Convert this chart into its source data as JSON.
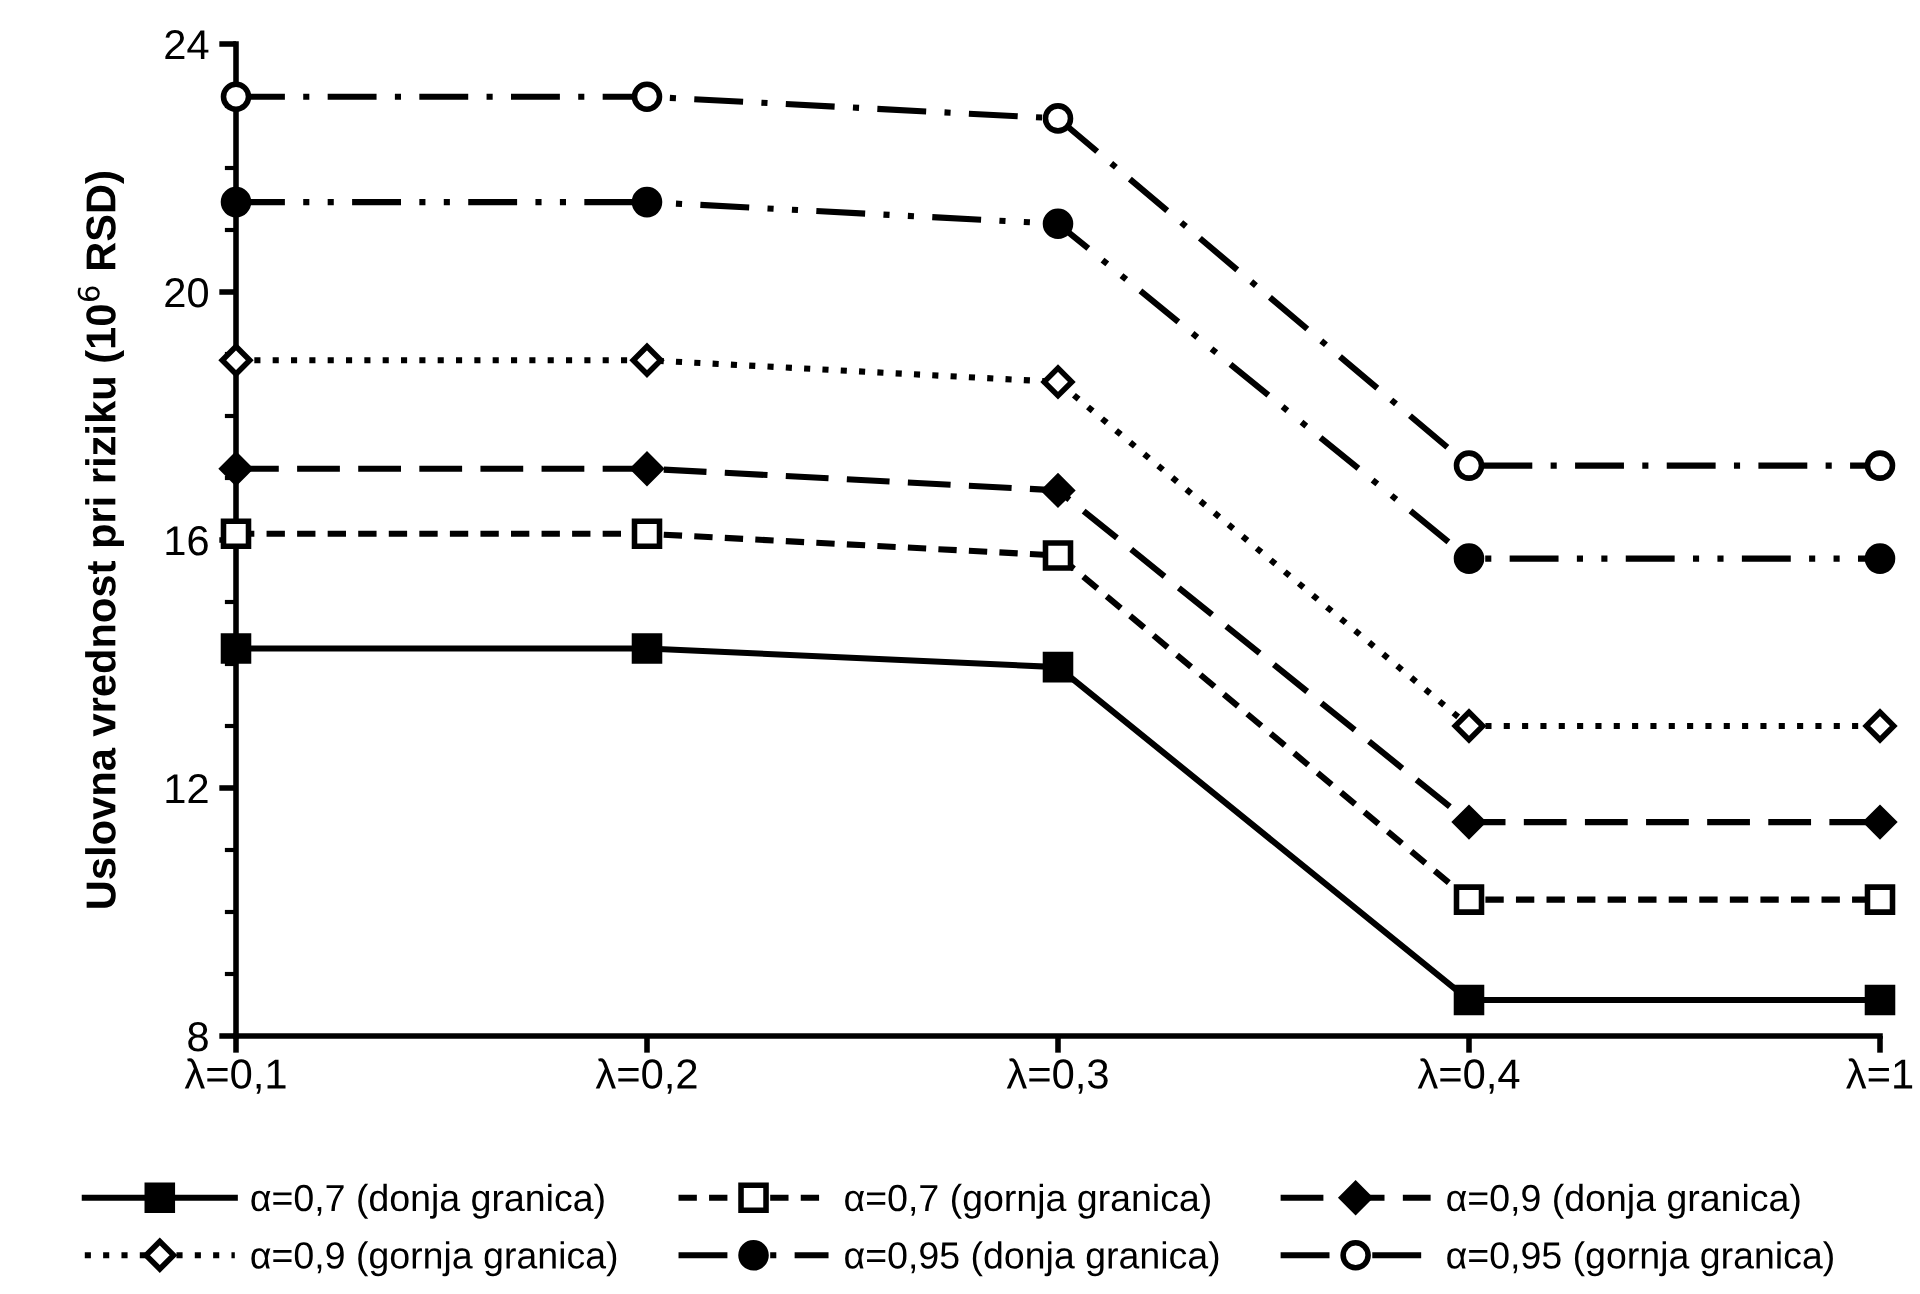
{
  "chart_data": {
    "type": "line",
    "ylabel": "Uslovna vrednost pri riziku (10$^{6}$ RSD)",
    "categories": [
      "λ=0,1",
      "λ=0,2",
      "λ=0,3",
      "λ=0,4",
      "λ=1"
    ],
    "ylim": [
      8,
      24
    ],
    "yticks": [
      8,
      {
        "value": 9,
        "label": null
      },
      {
        "value": 10,
        "label": null
      },
      {
        "value": 11,
        "label": null
      },
      12,
      {
        "value": 13,
        "label": null
      },
      {
        "value": 14,
        "label": null
      },
      {
        "value": 15,
        "label": null
      },
      16,
      {
        "value": 17,
        "label": null
      },
      {
        "value": 18,
        "label": null
      },
      {
        "value": 19,
        "label": null
      },
      20,
      {
        "value": 21,
        "label": null
      },
      {
        "value": 22,
        "label": null
      },
      {
        "value": 23,
        "label": null
      },
      24
    ],
    "grid": false,
    "legend": "bottom",
    "series": [
      {
        "name": "α=0,7 (donja granica)",
        "color": "#000000",
        "marker": "square",
        "line_style": "solid",
        "values": [
          14.25,
          14.25,
          13.95,
          8.58,
          8.58
        ]
      },
      {
        "name": "α=0,7 (gornja granica)",
        "color": "#000000",
        "marker": "square-open",
        "line_style": "dashed",
        "values": [
          16.1,
          16.1,
          15.75,
          10.2,
          10.2
        ]
      },
      {
        "name": "α=0,9 (donja granica)",
        "color": "#000000",
        "marker": "diamond",
        "line_style": "longdash",
        "values": [
          17.15,
          17.15,
          16.8,
          11.45,
          11.45
        ]
      },
      {
        "name": "α=0,9 (gornja granica)",
        "color": "#000000",
        "marker": "diamond-open",
        "line_style": "dotted",
        "values": [
          18.9,
          18.9,
          18.55,
          13.0,
          13.0
        ]
      },
      {
        "name": "α=0,95 (donja granica)",
        "color": "#000000",
        "marker": "circle",
        "line_style": "dashdotdot",
        "values": [
          21.45,
          21.45,
          21.1,
          15.7,
          15.7
        ]
      },
      {
        "name": "α=0,95 (gornja granica)",
        "color": "#000000",
        "marker": "circle-open",
        "line_style": "dashdot",
        "values": [
          23.15,
          23.15,
          22.8,
          17.2,
          17.2
        ]
      }
    ]
  }
}
